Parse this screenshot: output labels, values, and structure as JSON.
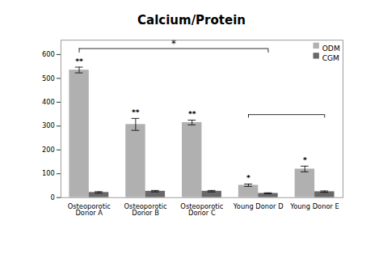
{
  "chart_data": {
    "type": "bar",
    "title": "Calcium/Protein",
    "categories": [
      "Osteoporotic\nDonor A",
      "Osteoporotic\nDonor B",
      "Osteoporotic\nDonor C",
      "Young Donor D",
      "Young Donor E"
    ],
    "series": [
      {
        "name": "ODM",
        "color": "#b0b0b0",
        "values": [
          535,
          307,
          315,
          52,
          120
        ],
        "errors": [
          12,
          25,
          10,
          5,
          12
        ],
        "significance": [
          "**",
          "**",
          "**",
          "*",
          "*"
        ]
      },
      {
        "name": "CGM",
        "color": "#686868",
        "values": [
          22,
          27,
          27,
          18,
          25
        ],
        "errors": [
          3,
          3,
          3,
          2,
          3
        ]
      }
    ],
    "brackets": [
      {
        "from": "Osteoporotic\nDonor A",
        "to": "Young Donor D",
        "y": 625,
        "tick": 18,
        "label": "*"
      },
      {
        "from": "Young Donor D",
        "to": "Young Donor E",
        "y": 348,
        "tick": 14
      }
    ],
    "ylim": [
      0,
      660
    ],
    "yticks": [
      0,
      100,
      200,
      300,
      400,
      500,
      600
    ],
    "legend": "upper right",
    "grid": false
  }
}
